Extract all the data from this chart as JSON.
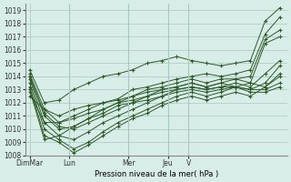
{
  "title": "",
  "xlabel": "Pression niveau de la mer( hPa )",
  "ylabel": "",
  "ylim": [
    1008,
    1019.5
  ],
  "yticks": [
    1008,
    1009,
    1010,
    1011,
    1012,
    1013,
    1014,
    1015,
    1016,
    1017,
    1018,
    1019
  ],
  "bg_color": "#d8ece8",
  "grid_color": "#a8c8c0",
  "line_color": "#2d5a27",
  "day_labels": [
    "DimMar",
    "Lun",
    "Mer",
    "Jeu",
    "V"
  ],
  "day_positions": [
    0.0,
    2.7,
    6.7,
    9.4,
    10.8
  ],
  "series": [
    [
      1014.5,
      1012.0,
      1012.2,
      1013.0,
      1013.5,
      1014.0,
      1014.2,
      1014.5,
      1015.0,
      1015.2,
      1015.5,
      1015.2,
      1015.0,
      1014.8,
      1015.0,
      1015.2,
      1018.2,
      1019.2
    ],
    [
      1014.2,
      1011.5,
      1010.5,
      1011.0,
      1011.5,
      1012.0,
      1012.3,
      1013.0,
      1013.2,
      1013.5,
      1013.8,
      1014.0,
      1014.2,
      1014.0,
      1014.2,
      1014.5,
      1017.2,
      1018.5
    ],
    [
      1014.0,
      1011.0,
      1010.0,
      1010.2,
      1010.8,
      1011.5,
      1012.0,
      1012.5,
      1013.0,
      1013.2,
      1013.5,
      1013.8,
      1013.5,
      1013.8,
      1013.8,
      1014.0,
      1016.8,
      1017.5
    ],
    [
      1014.0,
      1011.2,
      1010.2,
      1010.0,
      1010.5,
      1011.0,
      1011.5,
      1012.0,
      1012.5,
      1013.0,
      1013.2,
      1013.5,
      1013.2,
      1013.5,
      1013.8,
      1013.5,
      1016.5,
      1017.0
    ],
    [
      1013.8,
      1010.5,
      1009.5,
      1009.2,
      1009.8,
      1010.5,
      1011.0,
      1011.5,
      1012.0,
      1012.5,
      1013.0,
      1013.2,
      1013.0,
      1013.2,
      1013.5,
      1013.2,
      1014.2,
      1015.2
    ],
    [
      1013.5,
      1010.0,
      1009.2,
      1008.5,
      1009.0,
      1009.8,
      1010.5,
      1011.0,
      1011.5,
      1012.0,
      1012.5,
      1012.8,
      1012.5,
      1012.8,
      1013.2,
      1013.0,
      1013.5,
      1014.8
    ],
    [
      1013.2,
      1009.5,
      1009.0,
      1008.2,
      1008.8,
      1009.5,
      1010.2,
      1010.8,
      1011.2,
      1011.8,
      1012.2,
      1012.5,
      1012.2,
      1012.5,
      1012.8,
      1012.5,
      1013.2,
      1014.2
    ],
    [
      1013.0,
      1009.2,
      1009.5,
      1010.2,
      1010.8,
      1011.2,
      1011.8,
      1012.0,
      1012.2,
      1012.5,
      1012.8,
      1013.0,
      1012.8,
      1013.0,
      1013.2,
      1013.5,
      1013.2,
      1014.0
    ],
    [
      1012.8,
      1010.5,
      1010.5,
      1010.8,
      1011.2,
      1011.5,
      1012.0,
      1012.2,
      1012.5,
      1012.8,
      1013.0,
      1013.2,
      1013.0,
      1013.2,
      1013.2,
      1013.0,
      1013.0,
      1013.5
    ],
    [
      1012.5,
      1011.5,
      1011.0,
      1011.5,
      1011.8,
      1012.0,
      1012.2,
      1012.5,
      1012.8,
      1013.0,
      1013.2,
      1013.5,
      1013.2,
      1013.5,
      1013.2,
      1012.8,
      1012.8,
      1013.2
    ]
  ]
}
